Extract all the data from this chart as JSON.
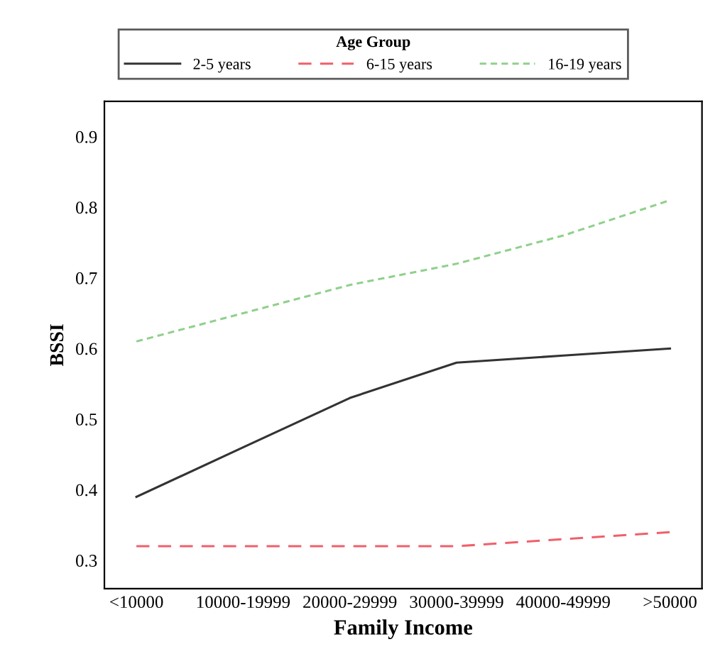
{
  "chart_data": {
    "type": "line",
    "xlabel": "Family Income",
    "ylabel": "BSSI",
    "legend_title": "Age Group",
    "legend": "top",
    "categories": [
      "<10000",
      "10000-19999",
      "20000-29999",
      "30000-39999",
      "40000-49999",
      ">50000"
    ],
    "series": [
      {
        "name": "2-5 years",
        "color": "#333333",
        "line_style": "solid",
        "values": [
          0.39,
          0.46,
          0.53,
          0.58,
          0.59,
          0.6
        ]
      },
      {
        "name": "6-15 years",
        "color": "#f0606a",
        "line_style": "dashed",
        "values": [
          0.32,
          0.32,
          0.32,
          0.32,
          0.33,
          0.34
        ]
      },
      {
        "name": "16-19 years",
        "color": "#90d08c",
        "line_style": "dotted",
        "values": [
          0.61,
          0.65,
          0.69,
          0.72,
          0.76,
          0.81
        ]
      }
    ],
    "ylim": [
      0.26,
      0.95
    ],
    "yticks": [
      0.3,
      0.4,
      0.5,
      0.6,
      0.7,
      0.8,
      0.9
    ],
    "grid": false,
    "marker": "none"
  }
}
